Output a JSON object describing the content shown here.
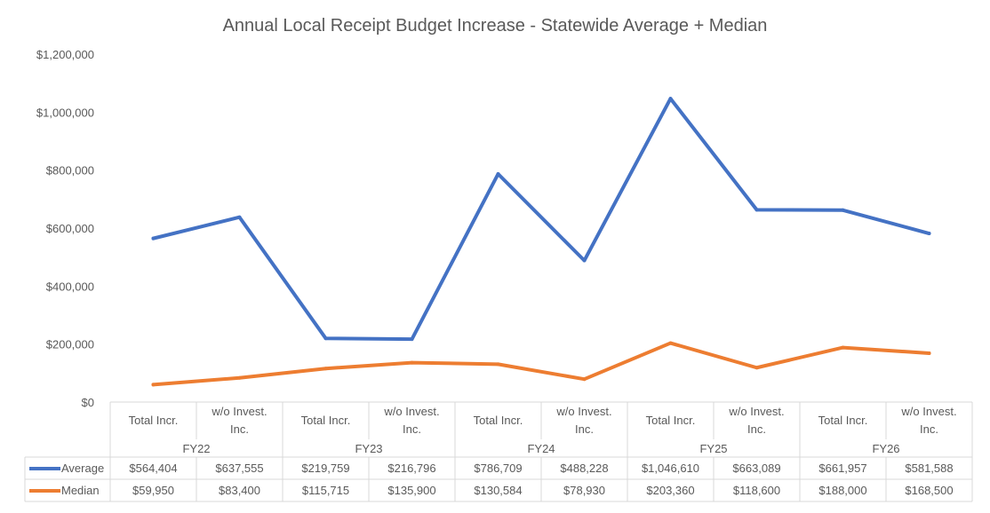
{
  "chart_data": {
    "type": "line",
    "title": "Annual Local Receipt Budget Increase - Statewide Average + Median",
    "xlabel": "",
    "ylabel": "",
    "ylim": [
      0,
      1200000
    ],
    "y_ticks": [
      "$0",
      "$200,000",
      "$400,000",
      "$600,000",
      "$800,000",
      "$1,000,000",
      "$1,200,000"
    ],
    "grid": false,
    "legend": "data-table",
    "groups": [
      "FY22",
      "FY23",
      "FY24",
      "FY25",
      "FY26"
    ],
    "categories": [
      "Total Incr.",
      "w/o Invest. Inc.",
      "Total Incr.",
      "w/o Invest. Inc.",
      "Total Incr.",
      "w/o Invest. Inc.",
      "Total Incr.",
      "w/o Invest. Inc.",
      "Total Incr.",
      "w/o Invest. Inc."
    ],
    "series": [
      {
        "name": "Average",
        "color": "#4472C4",
        "values": [
          564404,
          637555,
          219759,
          216796,
          786709,
          488228,
          1046610,
          663089,
          661957,
          581588
        ],
        "labels": [
          "$564,404",
          "$637,555",
          "$219,759",
          "$216,796",
          "$786,709",
          "$488,228",
          "$1,046,610",
          "$663,089",
          "$661,957",
          "$581,588"
        ]
      },
      {
        "name": "Median",
        "color": "#ED7D31",
        "values": [
          59950,
          83400,
          115715,
          135900,
          130584,
          78930,
          203360,
          118600,
          188000,
          168500
        ],
        "labels": [
          "$59,950",
          "$83,400",
          "$115,715",
          "$135,900",
          "$130,584",
          "$78,930",
          "$203,360",
          "$118,600",
          "$188,000",
          "$168,500"
        ]
      }
    ]
  }
}
